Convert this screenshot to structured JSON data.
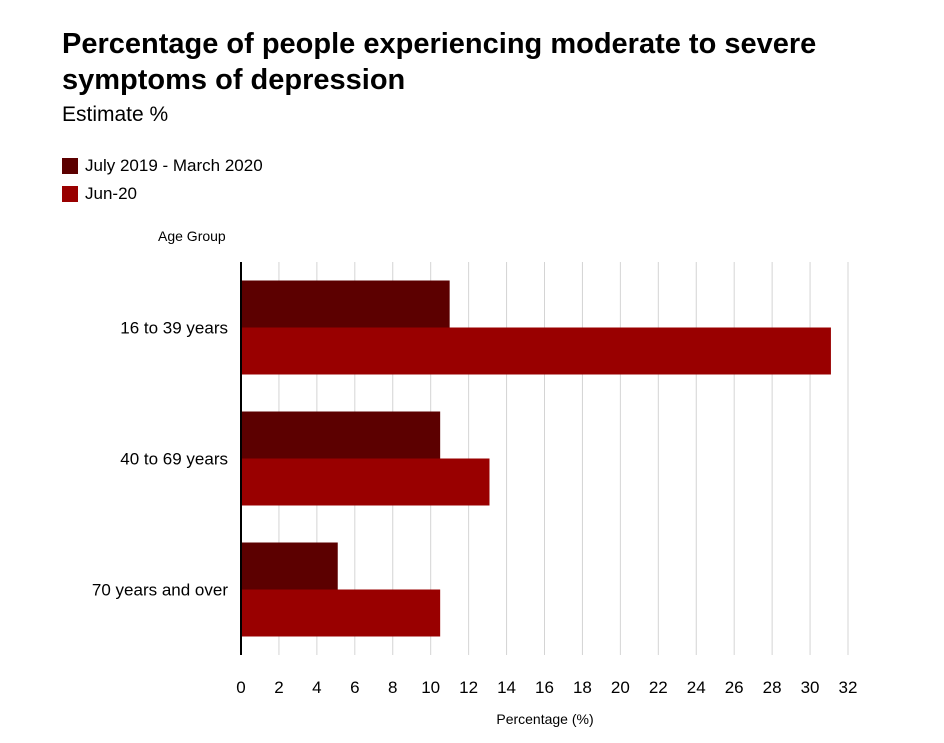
{
  "chart_data": {
    "type": "bar",
    "orientation": "horizontal",
    "title": "Percentage of people experiencing moderate to severe symptoms of depression",
    "subtitle": "Estimate %",
    "y_axis_title": "Age Group",
    "xlabel": "Percentage (%)",
    "categories": [
      "16 to 39 years",
      "40 to 69 years",
      "70 years and over"
    ],
    "series": [
      {
        "name": "July 2019 - March 2020",
        "color": "#5c0000",
        "values": [
          11.0,
          10.5,
          5.1
        ]
      },
      {
        "name": "Jun-20",
        "color": "#990000",
        "values": [
          31.1,
          13.1,
          10.5
        ]
      }
    ],
    "xlim": [
      0,
      32
    ],
    "x_ticks": [
      0,
      2,
      4,
      6,
      8,
      10,
      12,
      14,
      16,
      18,
      20,
      22,
      24,
      26,
      28,
      30,
      32
    ],
    "grid": true,
    "legend_position": "top-left"
  }
}
